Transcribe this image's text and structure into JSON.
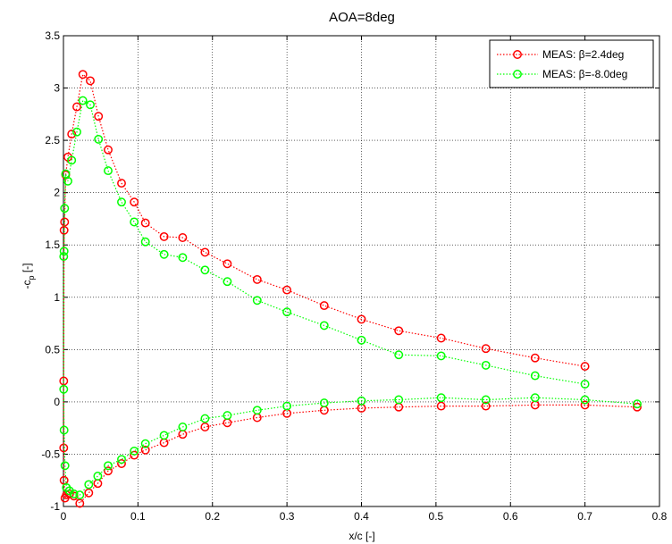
{
  "chart_data": {
    "type": "line",
    "title": "AOA=8deg",
    "xlabel": "x/c [-]",
    "ylabel_main": "-c",
    "ylabel_sub": "p",
    "ylabel_tail": " [-]",
    "xlim": [
      0,
      0.8
    ],
    "ylim": [
      -1,
      3.5
    ],
    "xticks": [
      0,
      0.1,
      0.2,
      0.3,
      0.4,
      0.5,
      0.6,
      0.7,
      0.8
    ],
    "xtick_labels": [
      "0",
      "0.1",
      "0.2",
      "0.3",
      "0.4",
      "0.5",
      "0.6",
      "0.7",
      "0.8"
    ],
    "yticks": [
      -1,
      -0.5,
      0,
      0.5,
      1,
      1.5,
      2,
      2.5,
      3,
      3.5
    ],
    "ytick_labels": [
      "-1",
      "-0.5",
      "0",
      "0.5",
      "1",
      "1.5",
      "2",
      "2.5",
      "3",
      "3.5"
    ],
    "grid": true,
    "legend_position": "top-right",
    "series": [
      {
        "name": "MEAS: β=2.4deg",
        "color": "#ff0000",
        "x": [
          0.7,
          0.633,
          0.567,
          0.507,
          0.45,
          0.4,
          0.35,
          0.3,
          0.26,
          0.22,
          0.19,
          0.16,
          0.135,
          0.11,
          0.095,
          0.078,
          0.06,
          0.047,
          0.036,
          0.026,
          0.018,
          0.011,
          0.006,
          0.003,
          0.0015,
          0.0008,
          0.0004,
          0.0004,
          0.0008,
          0.002,
          0.004,
          0.008,
          0.014,
          0.022,
          0.034,
          0.046,
          0.06,
          0.078,
          0.095,
          0.11,
          0.135,
          0.16,
          0.19,
          0.22,
          0.26,
          0.3,
          0.35,
          0.4,
          0.45,
          0.507,
          0.567,
          0.633,
          0.7,
          0.77
        ],
        "y": [
          0.34,
          0.42,
          0.51,
          0.61,
          0.68,
          0.79,
          0.92,
          1.07,
          1.17,
          1.32,
          1.43,
          1.57,
          1.58,
          1.71,
          1.91,
          2.09,
          2.41,
          2.73,
          3.07,
          3.13,
          2.82,
          2.56,
          2.34,
          2.17,
          1.72,
          1.64,
          0.2,
          -0.44,
          -0.75,
          -0.92,
          -0.89,
          -0.88,
          -0.9,
          -0.97,
          -0.87,
          -0.78,
          -0.66,
          -0.59,
          -0.51,
          -0.46,
          -0.39,
          -0.31,
          -0.24,
          -0.2,
          -0.15,
          -0.11,
          -0.08,
          -0.06,
          -0.05,
          -0.04,
          -0.04,
          -0.03,
          -0.03,
          -0.05
        ]
      },
      {
        "name": "MEAS: β=-8.0deg",
        "color": "#00ff00",
        "x": [
          0.7,
          0.633,
          0.567,
          0.507,
          0.45,
          0.4,
          0.35,
          0.3,
          0.26,
          0.22,
          0.19,
          0.16,
          0.135,
          0.11,
          0.095,
          0.078,
          0.06,
          0.047,
          0.036,
          0.026,
          0.018,
          0.011,
          0.006,
          0.003,
          0.0015,
          0.0008,
          0.0004,
          0.0004,
          0.0008,
          0.002,
          0.004,
          0.008,
          0.014,
          0.022,
          0.034,
          0.046,
          0.06,
          0.078,
          0.095,
          0.11,
          0.135,
          0.16,
          0.19,
          0.22,
          0.26,
          0.3,
          0.35,
          0.4,
          0.45,
          0.507,
          0.567,
          0.633,
          0.7,
          0.77
        ],
        "y": [
          0.17,
          0.25,
          0.35,
          0.44,
          0.45,
          0.59,
          0.73,
          0.86,
          0.97,
          1.15,
          1.26,
          1.38,
          1.41,
          1.53,
          1.72,
          1.91,
          2.21,
          2.51,
          2.84,
          2.88,
          2.58,
          2.31,
          2.11,
          2.18,
          1.85,
          1.44,
          1.39,
          0.12,
          -0.27,
          -0.61,
          -0.82,
          -0.85,
          -0.88,
          -0.89,
          -0.79,
          -0.71,
          -0.61,
          -0.55,
          -0.47,
          -0.4,
          -0.32,
          -0.24,
          -0.16,
          -0.13,
          -0.08,
          -0.04,
          -0.01,
          0.01,
          0.02,
          0.04,
          0.02,
          0.04,
          0.02,
          -0.02
        ]
      }
    ]
  }
}
